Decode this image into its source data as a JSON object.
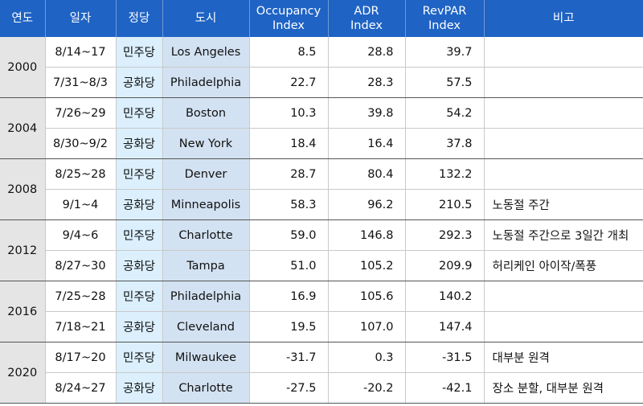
{
  "header": {
    "year": "연도",
    "date": "일자",
    "party": "정당",
    "city": "도시",
    "occupancy_line1": "Occupancy",
    "occupancy_line2": "Index",
    "adr_line1": "ADR",
    "adr_line2": "Index",
    "revpar_line1": "RevPAR",
    "revpar_line2": "Index",
    "note": "비고"
  },
  "groups": [
    {
      "year": "2000",
      "rows": [
        {
          "date": "8/14~17",
          "party": "민주당",
          "city": "Los Angeles",
          "occupancy": "8.5",
          "adr": "28.8",
          "revpar": "39.7",
          "note": ""
        },
        {
          "date": "7/31~8/3",
          "party": "공화당",
          "city": "Philadelphia",
          "occupancy": "22.7",
          "adr": "28.3",
          "revpar": "57.5",
          "note": ""
        }
      ]
    },
    {
      "year": "2004",
      "rows": [
        {
          "date": "7/26~29",
          "party": "민주당",
          "city": "Boston",
          "occupancy": "10.3",
          "adr": "39.8",
          "revpar": "54.2",
          "note": ""
        },
        {
          "date": "8/30~9/2",
          "party": "공화당",
          "city": "New York",
          "occupancy": "18.4",
          "adr": "16.4",
          "revpar": "37.8",
          "note": ""
        }
      ]
    },
    {
      "year": "2008",
      "rows": [
        {
          "date": "8/25~28",
          "party": "민주당",
          "city": "Denver",
          "occupancy": "28.7",
          "adr": "80.4",
          "revpar": "132.2",
          "note": ""
        },
        {
          "date": "9/1~4",
          "party": "공화당",
          "city": "Minneapolis",
          "occupancy": "58.3",
          "adr": "96.2",
          "revpar": "210.5",
          "note": "노동절 주간"
        }
      ]
    },
    {
      "year": "2012",
      "rows": [
        {
          "date": "9/4~6",
          "party": "민주당",
          "city": "Charlotte",
          "occupancy": "59.0",
          "adr": "146.8",
          "revpar": "292.3",
          "note": "노동절 주간으로 3일간 개최"
        },
        {
          "date": "8/27~30",
          "party": "공화당",
          "city": "Tampa",
          "occupancy": "51.0",
          "adr": "105.2",
          "revpar": "209.9",
          "note": "허리케인 아이작/폭풍"
        }
      ]
    },
    {
      "year": "2016",
      "rows": [
        {
          "date": "7/25~28",
          "party": "민주당",
          "city": "Philadelphia",
          "occupancy": "16.9",
          "adr": "105.6",
          "revpar": "140.2",
          "note": ""
        },
        {
          "date": "7/18~21",
          "party": "공화당",
          "city": "Cleveland",
          "occupancy": "19.5",
          "adr": "107.0",
          "revpar": "147.4",
          "note": ""
        }
      ]
    },
    {
      "year": "2020",
      "rows": [
        {
          "date": "8/17~20",
          "party": "민주당",
          "city": "Milwaukee",
          "occupancy": "-31.7",
          "adr": "0.3",
          "revpar": "-31.5",
          "note": "대부분 원격"
        },
        {
          "date": "8/24~27",
          "party": "공화당",
          "city": "Charlotte",
          "occupancy": "-27.5",
          "adr": "-20.2",
          "revpar": "-42.1",
          "note": "장소 분할, 대부분 원격"
        }
      ]
    }
  ]
}
